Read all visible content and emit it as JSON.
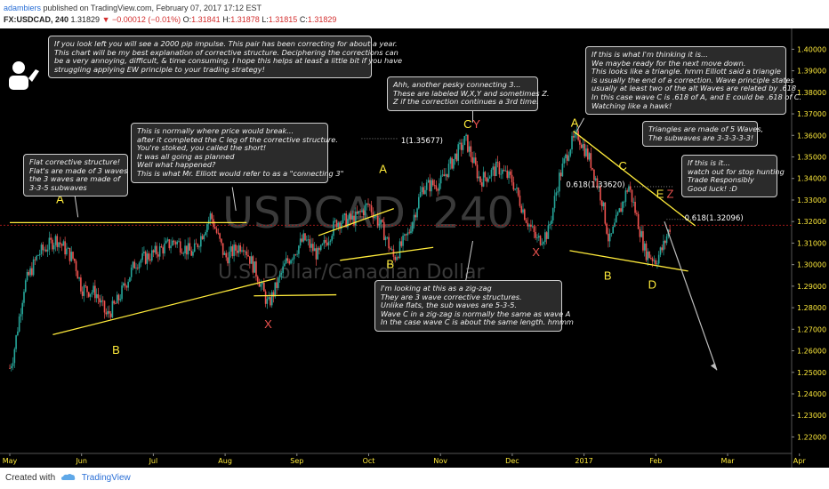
{
  "header": {
    "author": "adambiers",
    "published_text": "published on TradingView.com, February 07, 2017 17:12 EST",
    "symbol": "FX:USDCAD, 240",
    "last": "1.31829",
    "change": "−0.00012 (−0.01%)",
    "open_label": "O:",
    "open": "1.31841",
    "high_label": "H:",
    "high": "1.31878",
    "low_label": "L:",
    "low": "1.31815",
    "close_label": "C:",
    "close": "1.31829"
  },
  "watermark": {
    "symbol": "USDCAD, 240",
    "name": "U.S. Dollar/Canadian Dollar"
  },
  "chart_data": {
    "type": "candlestick",
    "title": "FX:USDCAD, 240",
    "ylim": [
      1.214,
      1.408
    ],
    "y_ticks": [
      "1.22000",
      "1.23000",
      "1.24000",
      "1.25000",
      "1.26000",
      "1.27000",
      "1.28000",
      "1.29000",
      "1.30000",
      "1.31000",
      "1.32000",
      "1.33000",
      "1.34000",
      "1.35000",
      "1.36000",
      "1.37000",
      "1.38000",
      "1.39000",
      "1.40000"
    ],
    "x_ticks": [
      "May",
      "Jun",
      "Jul",
      "Aug",
      "Sep",
      "Oct",
      "Nov",
      "Dec",
      "2017",
      "Feb",
      "Mar",
      "Apr"
    ],
    "x_tick_months": [
      0,
      1,
      2,
      3,
      4,
      5,
      6,
      7,
      8,
      9,
      10,
      11
    ],
    "approx_close_path": [
      {
        "m": 0.0,
        "p": 1.252
      },
      {
        "m": 0.05,
        "p": 1.258
      },
      {
        "m": 0.2,
        "p": 1.29
      },
      {
        "m": 0.4,
        "p": 1.305
      },
      {
        "m": 0.65,
        "p": 1.312
      },
      {
        "m": 0.9,
        "p": 1.302
      },
      {
        "m": 1.0,
        "p": 1.289
      },
      {
        "m": 1.2,
        "p": 1.287
      },
      {
        "m": 1.35,
        "p": 1.276
      },
      {
        "m": 1.5,
        "p": 1.283
      },
      {
        "m": 1.75,
        "p": 1.301
      },
      {
        "m": 2.0,
        "p": 1.305
      },
      {
        "m": 2.3,
        "p": 1.311
      },
      {
        "m": 2.55,
        "p": 1.305
      },
      {
        "m": 2.8,
        "p": 1.323
      },
      {
        "m": 3.0,
        "p": 1.303
      },
      {
        "m": 3.25,
        "p": 1.31
      },
      {
        "m": 3.45,
        "p": 1.295
      },
      {
        "m": 3.6,
        "p": 1.281
      },
      {
        "m": 3.85,
        "p": 1.301
      },
      {
        "m": 4.1,
        "p": 1.312
      },
      {
        "m": 4.3,
        "p": 1.304
      },
      {
        "m": 4.55,
        "p": 1.32
      },
      {
        "m": 4.8,
        "p": 1.321
      },
      {
        "m": 5.0,
        "p": 1.328
      },
      {
        "m": 5.2,
        "p": 1.316
      },
      {
        "m": 5.35,
        "p": 1.303
      },
      {
        "m": 5.55,
        "p": 1.314
      },
      {
        "m": 5.75,
        "p": 1.336
      },
      {
        "m": 6.0,
        "p": 1.338
      },
      {
        "m": 6.2,
        "p": 1.35
      },
      {
        "m": 6.35,
        "p": 1.358
      },
      {
        "m": 6.55,
        "p": 1.339
      },
      {
        "m": 6.8,
        "p": 1.345
      },
      {
        "m": 7.0,
        "p": 1.339
      },
      {
        "m": 7.2,
        "p": 1.321
      },
      {
        "m": 7.35,
        "p": 1.311
      },
      {
        "m": 7.5,
        "p": 1.315
      },
      {
        "m": 7.65,
        "p": 1.34
      },
      {
        "m": 7.8,
        "p": 1.355
      },
      {
        "m": 7.92,
        "p": 1.36
      },
      {
        "m": 8.1,
        "p": 1.347
      },
      {
        "m": 8.25,
        "p": 1.33
      },
      {
        "m": 8.35,
        "p": 1.31
      },
      {
        "m": 8.5,
        "p": 1.325
      },
      {
        "m": 8.62,
        "p": 1.337
      },
      {
        "m": 8.75,
        "p": 1.32
      },
      {
        "m": 8.85,
        "p": 1.306
      },
      {
        "m": 9.0,
        "p": 1.302
      },
      {
        "m": 9.1,
        "p": 1.308
      },
      {
        "m": 9.2,
        "p": 1.318
      }
    ],
    "horizontal_price_line": 1.3183,
    "wave_labels": [
      {
        "text": "A",
        "color": "yellow"
      },
      {
        "text": "B",
        "color": "yellow"
      },
      {
        "text": "C",
        "color": "yellow"
      },
      {
        "text": "W",
        "color": "red"
      },
      {
        "text": "X",
        "color": "red"
      },
      {
        "text": "A",
        "color": "yellow"
      },
      {
        "text": "B",
        "color": "yellow"
      },
      {
        "text": "C",
        "color": "yellow"
      },
      {
        "text": "Y",
        "color": "red"
      },
      {
        "text": "X",
        "color": "red"
      },
      {
        "text": "A",
        "color": "yellow"
      },
      {
        "text": "B",
        "color": "yellow"
      },
      {
        "text": "C",
        "color": "yellow"
      },
      {
        "text": "D",
        "color": "yellow"
      },
      {
        "text": "E",
        "color": "yellow"
      },
      {
        "text": "Z",
        "color": "red"
      }
    ],
    "fib_labels": [
      "1(1.35677)",
      "0.618(1.33620)",
      "0.618(1.32096)"
    ]
  },
  "callouts": [
    {
      "text": "If you look left you will see a 2000 pip impulse. This pair has been correcting for about a year.\nThis chart will be my best explanation of corrective structure. Deciphering the corrections can\nbe a very annoying, difficult, & time consuming. I hope this helps at least a little bit if you have\nstruggling applying EW principle to your trading strategy!"
    },
    {
      "text": "Flat corrective structure!\nFlat's are made of 3 waves\nthe 3 waves are made of\n3-3-5 subwaves"
    },
    {
      "text": "This is normally where price would break...\nafter it completed the C leg of the corrective structure.\nYou're stoked, you called the short!\nIt was all going as planned\nWell what happened?\nThis is what Mr. Elliott would refer to as a \"connecting 3\""
    },
    {
      "text": "Ahh, another pesky connecting 3...\nThese are labeled W,X,Y and sometimes Z.\nZ if the correction continues a 3rd time."
    },
    {
      "text": "I'm looking at this as a zig-zag\nThey are 3 wave corrective structures.\nUnlike flats, the sub waves are 5-3-5.\nWave C in a zig-zag is normally the same as wave A\nIn the case wave C is about the same length. hmmm"
    },
    {
      "text": "If this is what I'm thinking it is...\nWe maybe ready for the next move down.\nThis looks like a triangle. hmm Elliott said a triangle\nis usually the end of a correction. Wave principle states\nusually at least two of the alt Waves are related by .618\nIn this case wave C is .618 of A, and E could be .618 of C.\nWatching like a hawk!"
    },
    {
      "text": "Triangles are made of 5 Waves,\nThe subwaves are 3-3-3-3-3!"
    },
    {
      "text": "If this is it...\nwatch out for stop hunting\nTrade Responsibly\nGood luck! :D"
    }
  ],
  "footer": {
    "created_with": "Created with",
    "brand": "TradingView"
  },
  "colors": {
    "background": "#000000",
    "up": "#26a69a",
    "down": "#ef5350",
    "trendline": "#ffeb3b",
    "wave_yellow": "#ffeb3b",
    "wave_red": "#ef5350",
    "axis_text": "#ffeb3b",
    "arrow": "#bdbdbd"
  }
}
